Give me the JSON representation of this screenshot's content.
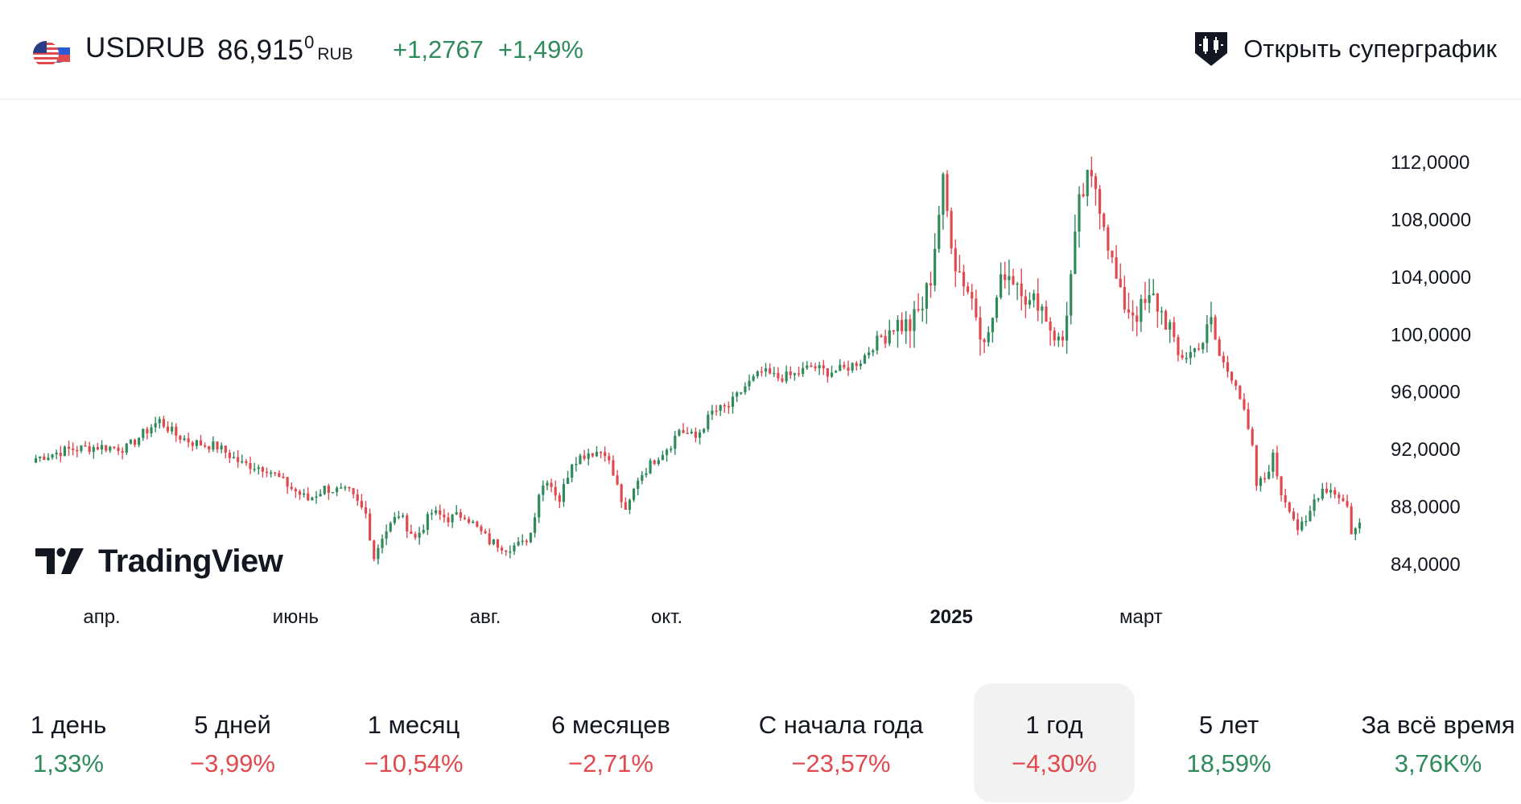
{
  "header": {
    "symbol": "USDRUB",
    "price_main": "86,915",
    "price_sup": "0",
    "price_unit": "RUB",
    "change_abs": "+1,2767",
    "change_pct": "+1,49%",
    "open_chart_label": "Открыть суперграфик",
    "flag_icon": "usd-rub-flag-icon",
    "accent_up": "#2f8a5c",
    "accent_down": "#e04a4f"
  },
  "logo": {
    "text": "TradingView"
  },
  "periods": [
    {
      "label": "1 день",
      "value": "1,33%",
      "trend": "up"
    },
    {
      "label": "5 дней",
      "value": "−3,99%",
      "trend": "down"
    },
    {
      "label": "1 месяц",
      "value": "−10,54%",
      "trend": "down"
    },
    {
      "label": "6 месяцев",
      "value": "−2,71%",
      "trend": "down"
    },
    {
      "label": "С начала года",
      "value": "−23,57%",
      "trend": "down"
    },
    {
      "label": "1 год",
      "value": "−4,30%",
      "trend": "down",
      "selected": true
    },
    {
      "label": "5 лет",
      "value": "18,59%",
      "trend": "up"
    },
    {
      "label": "За всё время",
      "value": "3,76K%",
      "trend": "up"
    }
  ],
  "chart_data": {
    "type": "candlestick",
    "y_ticks": [
      "112,0000",
      "108,0000",
      "104,0000",
      "100,0000",
      "96,0000",
      "92,0000",
      "88,0000",
      "84,0000"
    ],
    "y_tick_values": [
      112,
      108,
      104,
      100,
      96,
      92,
      88,
      84
    ],
    "ylim": [
      82,
      115
    ],
    "x_ticks": [
      {
        "label": "апр.",
        "index": 16,
        "bold": false
      },
      {
        "label": "июнь",
        "index": 63,
        "bold": false
      },
      {
        "label": "авг.",
        "index": 109,
        "bold": false
      },
      {
        "label": "окт.",
        "index": 153,
        "bold": false
      },
      {
        "label": "2025",
        "index": 222,
        "bold": true
      },
      {
        "label": "март",
        "index": 268,
        "bold": false
      }
    ],
    "anchors": [
      [
        0,
        91.4
      ],
      [
        8,
        92.0
      ],
      [
        15,
        92.2
      ],
      [
        22,
        92.1
      ],
      [
        28,
        93.6
      ],
      [
        30,
        94.0
      ],
      [
        34,
        93.0
      ],
      [
        38,
        92.5
      ],
      [
        44,
        92.2
      ],
      [
        50,
        91.0
      ],
      [
        56,
        90.7
      ],
      [
        62,
        89.3
      ],
      [
        66,
        88.5
      ],
      [
        70,
        89.3
      ],
      [
        76,
        89.0
      ],
      [
        80,
        87.5
      ],
      [
        82,
        84.5
      ],
      [
        84,
        86.0
      ],
      [
        88,
        87.5
      ],
      [
        92,
        85.8
      ],
      [
        96,
        87.6
      ],
      [
        100,
        87.2
      ],
      [
        104,
        87.5
      ],
      [
        107,
        86.5
      ],
      [
        110,
        85.6
      ],
      [
        114,
        85.2
      ],
      [
        118,
        85.4
      ],
      [
        120,
        86.2
      ],
      [
        122,
        89.0
      ],
      [
        124,
        90.0
      ],
      [
        127,
        88.5
      ],
      [
        130,
        91.2
      ],
      [
        134,
        91.8
      ],
      [
        138,
        91.9
      ],
      [
        141,
        89.4
      ],
      [
        143,
        87.5
      ],
      [
        146,
        90.0
      ],
      [
        150,
        91.3
      ],
      [
        154,
        92.4
      ],
      [
        156,
        93.4
      ],
      [
        160,
        92.8
      ],
      [
        164,
        94.6
      ],
      [
        168,
        95.0
      ],
      [
        172,
        96.4
      ],
      [
        176,
        97.4
      ],
      [
        180,
        97.0
      ],
      [
        184,
        97.2
      ],
      [
        188,
        97.8
      ],
      [
        192,
        97.4
      ],
      [
        196,
        97.6
      ],
      [
        200,
        98.2
      ],
      [
        204,
        99.6
      ],
      [
        208,
        100.8
      ],
      [
        212,
        100.6
      ],
      [
        215,
        102.0
      ],
      [
        217,
        104.0
      ],
      [
        219,
        108.5
      ],
      [
        220,
        110.5
      ],
      [
        221,
        108.5
      ],
      [
        223,
        105.0
      ],
      [
        225,
        103.8
      ],
      [
        227,
        102.5
      ],
      [
        229,
        100.5
      ],
      [
        231,
        100.0
      ],
      [
        233,
        102.5
      ],
      [
        235,
        104.5
      ],
      [
        237,
        104.0
      ],
      [
        239,
        103.5
      ],
      [
        241,
        102.0
      ],
      [
        243,
        102.5
      ],
      [
        245,
        101.3
      ],
      [
        247,
        99.8
      ],
      [
        249,
        99.6
      ],
      [
        251,
        104.0
      ],
      [
        253,
        109.0
      ],
      [
        255,
        110.7
      ],
      [
        257,
        110.3
      ],
      [
        259,
        108.0
      ],
      [
        261,
        105.0
      ],
      [
        263,
        102.5
      ],
      [
        265,
        101.8
      ],
      [
        267,
        101.5
      ],
      [
        269,
        102.0
      ],
      [
        271,
        102.5
      ],
      [
        273,
        101.5
      ],
      [
        275,
        100.5
      ],
      [
        277,
        98.5
      ],
      [
        279,
        98.5
      ],
      [
        281,
        99.0
      ],
      [
        283,
        99.5
      ],
      [
        285,
        100.8
      ],
      [
        287,
        98.5
      ],
      [
        289,
        97.5
      ],
      [
        291,
        96.7
      ],
      [
        293,
        94.5
      ],
      [
        295,
        92.0
      ],
      [
        296,
        89.5
      ],
      [
        298,
        90.0
      ],
      [
        300,
        91.5
      ],
      [
        302,
        89.0
      ],
      [
        304,
        88.0
      ],
      [
        306,
        86.5
      ],
      [
        308,
        86.8
      ],
      [
        310,
        88.5
      ],
      [
        312,
        89.3
      ],
      [
        314,
        89.2
      ],
      [
        316,
        88.8
      ],
      [
        318,
        88.0
      ],
      [
        319,
        86.3
      ],
      [
        321,
        86.6
      ]
    ],
    "last_value": 86.915
  }
}
